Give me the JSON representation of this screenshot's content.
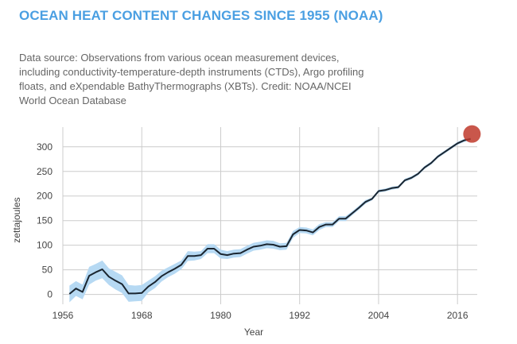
{
  "title": "OCEAN HEAT CONTENT CHANGES SINCE 1955 (NOAA)",
  "subtitle": "Data source: Observations from various ocean measurement devices, including conductivity-temperature-depth instruments (CTDs), Argo profiling floats, and eXpendable BathyThermographs (XBTs). Credit: NOAA/NCEI World Ocean Database",
  "colors": {
    "title": "#4a9fe2",
    "line": "#1a2530",
    "band": "#b6d9f3",
    "marker": "#c0392b",
    "grid": "#cccccc"
  },
  "chart_data": {
    "type": "line",
    "title": "",
    "xlabel": "Year",
    "ylabel": "zettajoules",
    "xlim": [
      1956,
      2019
    ],
    "ylim": [
      -20,
      340
    ],
    "x_ticks": [
      1956,
      1968,
      1980,
      1992,
      2004,
      2016
    ],
    "y_ticks": [
      0,
      50,
      100,
      150,
      200,
      250,
      300
    ],
    "grid": true,
    "legend": "none",
    "series": [
      {
        "x": [
          1957,
          1958,
          1959,
          1960,
          1961,
          1962,
          1963,
          1964,
          1965,
          1966,
          1967,
          1968,
          1969,
          1970,
          1971,
          1972,
          1973,
          1974,
          1975,
          1976,
          1977,
          1978,
          1979,
          1980,
          1981,
          1982,
          1983,
          1984,
          1985,
          1986,
          1987,
          1988,
          1989,
          1990,
          1991,
          1992,
          1993,
          1994,
          1995,
          1996,
          1997,
          1998,
          1999,
          2000,
          2001,
          2002,
          2003,
          2004,
          2005,
          2006,
          2007,
          2008,
          2009,
          2010,
          2011,
          2012,
          2013,
          2014,
          2015,
          2016,
          2017,
          2018
        ],
        "values": [
          1,
          12,
          5,
          38,
          45,
          51,
          36,
          28,
          21,
          2,
          2,
          3,
          16,
          25,
          37,
          45,
          52,
          60,
          78,
          78,
          80,
          93,
          93,
          82,
          80,
          83,
          84,
          91,
          97,
          99,
          102,
          101,
          97,
          98,
          122,
          131,
          130,
          126,
          137,
          142,
          142,
          154,
          154,
          165,
          176,
          188,
          194,
          210,
          212,
          216,
          218,
          232,
          237,
          245,
          258,
          267,
          280,
          289,
          298,
          307,
          313,
          316
        ],
        "lower": [
          -16,
          -3,
          -10,
          20,
          28,
          33,
          19,
          10,
          3,
          -15,
          -14,
          -13,
          4,
          13,
          26,
          35,
          42,
          51,
          68,
          69,
          72,
          84,
          84,
          73,
          72,
          75,
          76,
          83,
          89,
          91,
          94,
          93,
          90,
          91,
          115,
          125,
          124,
          120,
          131,
          137,
          137,
          149,
          149,
          161,
          172,
          184,
          191,
          207,
          209,
          213,
          215,
          229,
          234,
          242,
          255,
          264,
          277,
          286,
          295,
          304,
          310,
          313
        ],
        "upper": [
          18,
          27,
          20,
          56,
          62,
          69,
          53,
          46,
          39,
          19,
          18,
          19,
          28,
          37,
          48,
          55,
          62,
          69,
          88,
          87,
          88,
          102,
          102,
          91,
          88,
          91,
          92,
          99,
          105,
          107,
          110,
          109,
          104,
          105,
          129,
          137,
          136,
          132,
          143,
          147,
          147,
          159,
          159,
          169,
          180,
          192,
          197,
          213,
          215,
          219,
          221,
          235,
          240,
          248,
          261,
          270,
          283,
          292,
          301,
          310,
          316,
          319
        ]
      }
    ],
    "marker": {
      "x": 2018.2,
      "y": 326
    }
  }
}
